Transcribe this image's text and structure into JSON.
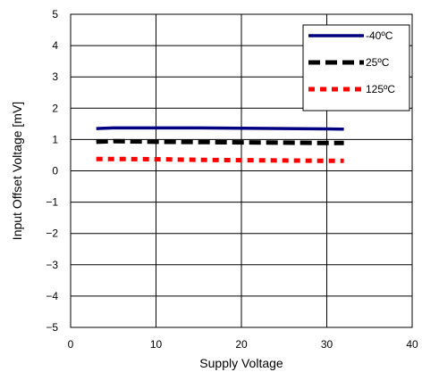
{
  "chart_data": {
    "type": "line",
    "title": "",
    "xlabel": "Supply Voltage",
    "ylabel": "Input Offset Voltage [mV]",
    "xlim": [
      0,
      40
    ],
    "ylim": [
      -5,
      5
    ],
    "x_ticks": [
      "0",
      "10",
      "20",
      "30",
      "40"
    ],
    "y_ticks": [
      "5",
      "4",
      "3",
      "2",
      "1",
      "0",
      "−1",
      "−2",
      "−3",
      "−4",
      "−5"
    ],
    "grid": true,
    "legend_position": "top-right",
    "series": [
      {
        "name": "-40ºC",
        "color": "#000080",
        "style": "solid",
        "x": [
          3,
          5,
          10,
          15,
          20,
          25,
          30,
          32
        ],
        "y": [
          1.35,
          1.37,
          1.37,
          1.37,
          1.36,
          1.35,
          1.34,
          1.33
        ]
      },
      {
        "name": "25ºC",
        "color": "#000000",
        "style": "dashed",
        "x": [
          3,
          5,
          10,
          15,
          20,
          25,
          30,
          32
        ],
        "y": [
          0.93,
          0.95,
          0.93,
          0.92,
          0.91,
          0.9,
          0.89,
          0.89
        ]
      },
      {
        "name": "125ºC",
        "color": "#ff0000",
        "style": "dotted",
        "x": [
          3,
          5,
          10,
          15,
          20,
          25,
          30,
          32
        ],
        "y": [
          0.38,
          0.38,
          0.37,
          0.35,
          0.34,
          0.33,
          0.32,
          0.32
        ]
      }
    ]
  }
}
